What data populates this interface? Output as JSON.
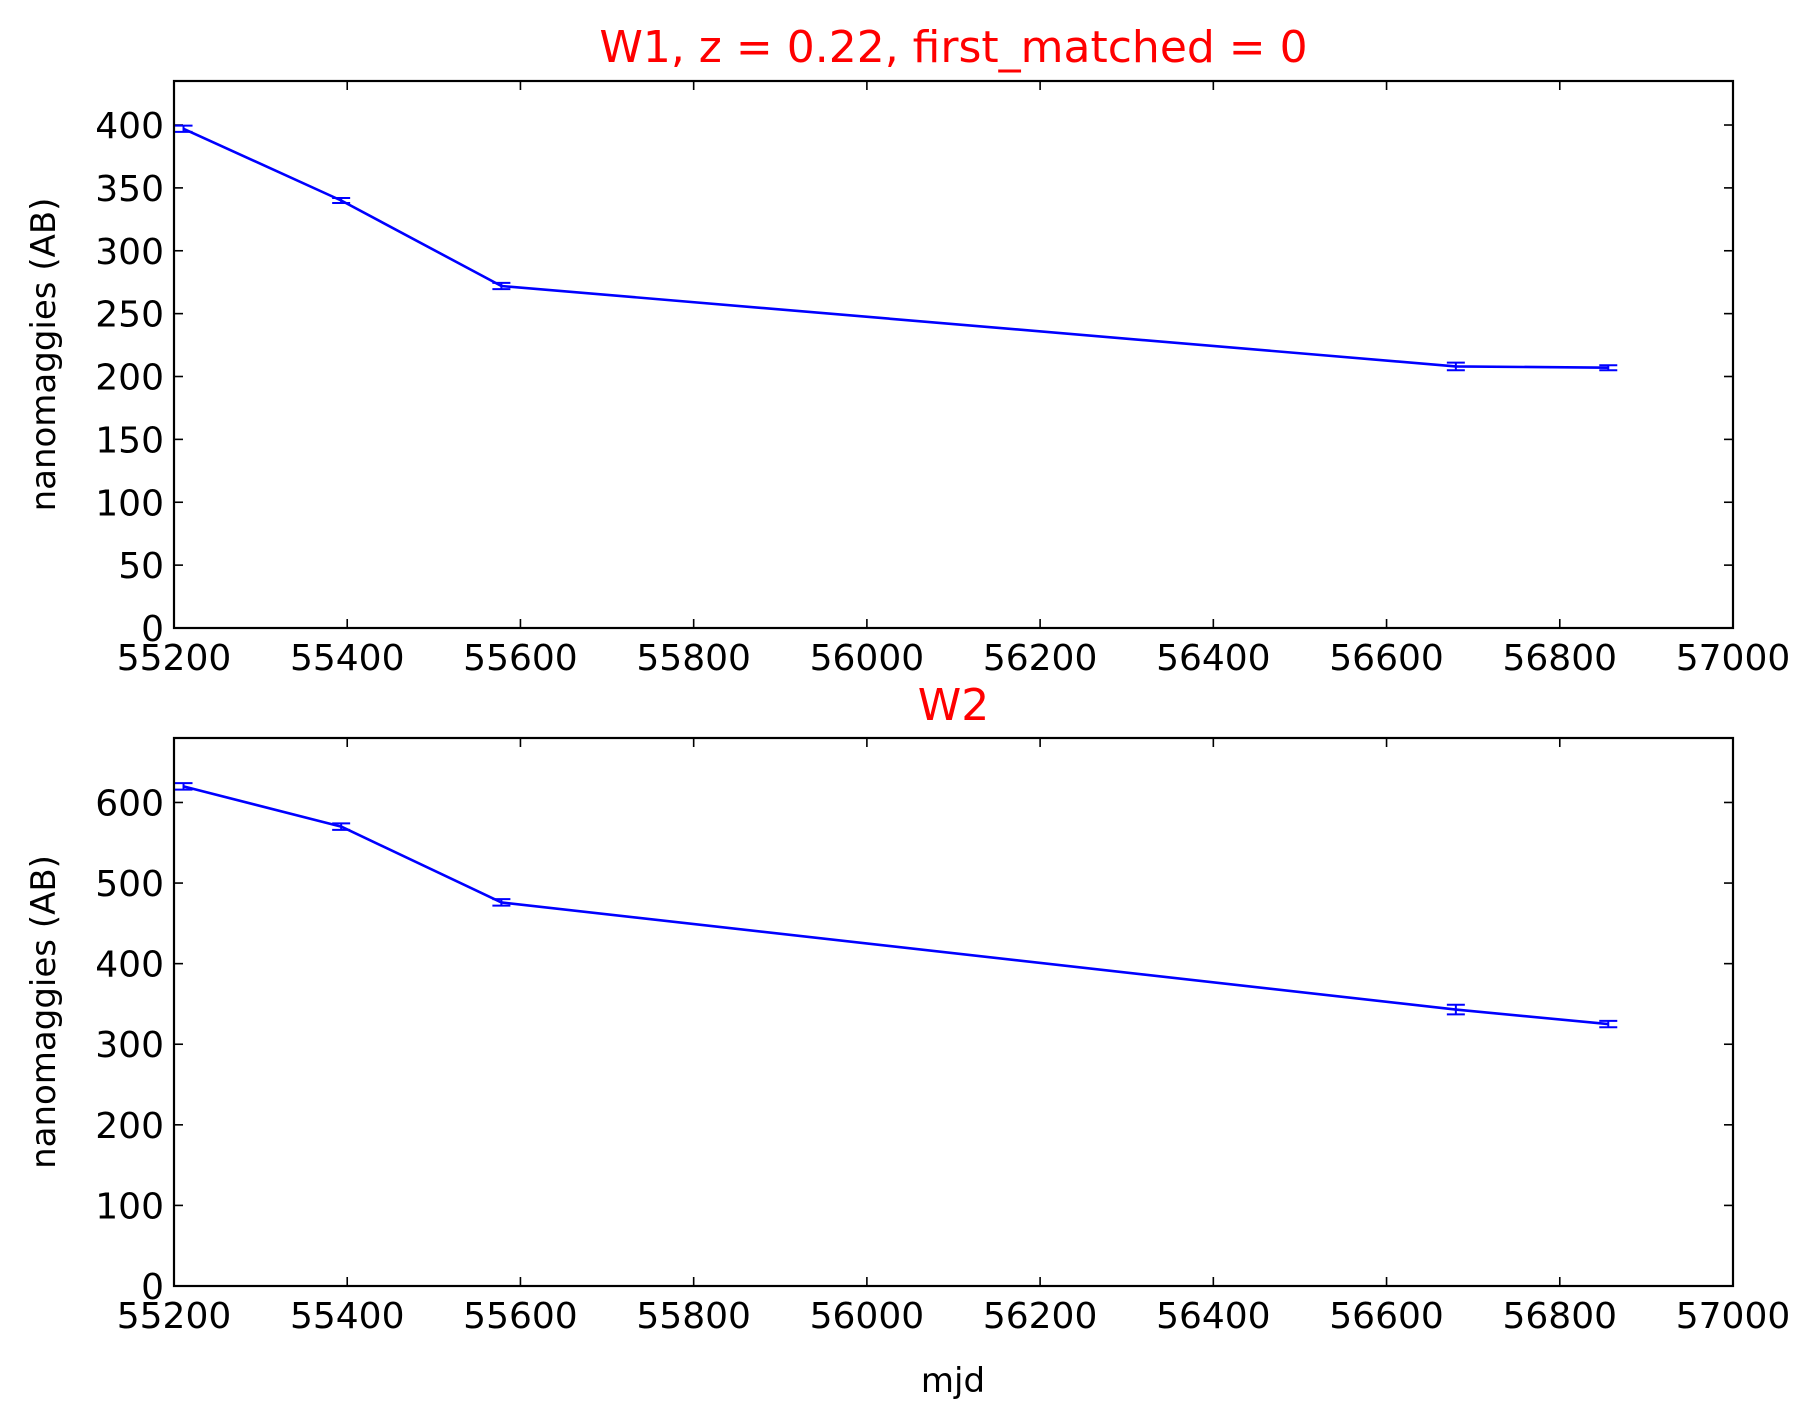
{
  "figure": {
    "xlabel": "mjd",
    "line_color": "#0000ff",
    "title_color": "#ff0000"
  },
  "chart_data": [
    {
      "type": "line",
      "title": "W1, z = 0.22, first_matched = 0",
      "xlabel": "",
      "ylabel": "nanomaggies (AB)",
      "xlim": [
        55200,
        57000
      ],
      "ylim": [
        0,
        435
      ],
      "xticks": [
        55200,
        55400,
        55600,
        55800,
        56000,
        56200,
        56400,
        56600,
        56800,
        57000
      ],
      "yticks": [
        0,
        50,
        100,
        150,
        200,
        250,
        300,
        350,
        400
      ],
      "grid": false,
      "series": [
        {
          "color": "#0000ff",
          "x": [
            55211,
            55393,
            55578,
            56680,
            56856
          ],
          "y": [
            397,
            340,
            272,
            208,
            207
          ],
          "yerr": [
            2.5,
            2,
            2.5,
            3,
            2
          ]
        }
      ]
    },
    {
      "type": "line",
      "title": "W2",
      "xlabel": "mjd",
      "ylabel": "nanomaggies (AB)",
      "xlim": [
        55200,
        57000
      ],
      "ylim": [
        0,
        680
      ],
      "xticks": [
        55200,
        55400,
        55600,
        55800,
        56000,
        56200,
        56400,
        56600,
        56800,
        57000
      ],
      "yticks": [
        0,
        100,
        200,
        300,
        400,
        500,
        600
      ],
      "grid": false,
      "series": [
        {
          "color": "#0000ff",
          "x": [
            55211,
            55393,
            55578,
            56680,
            56856
          ],
          "y": [
            620,
            570,
            476,
            343,
            325
          ],
          "yerr": [
            4,
            4,
            4,
            6,
            4
          ]
        }
      ]
    }
  ]
}
